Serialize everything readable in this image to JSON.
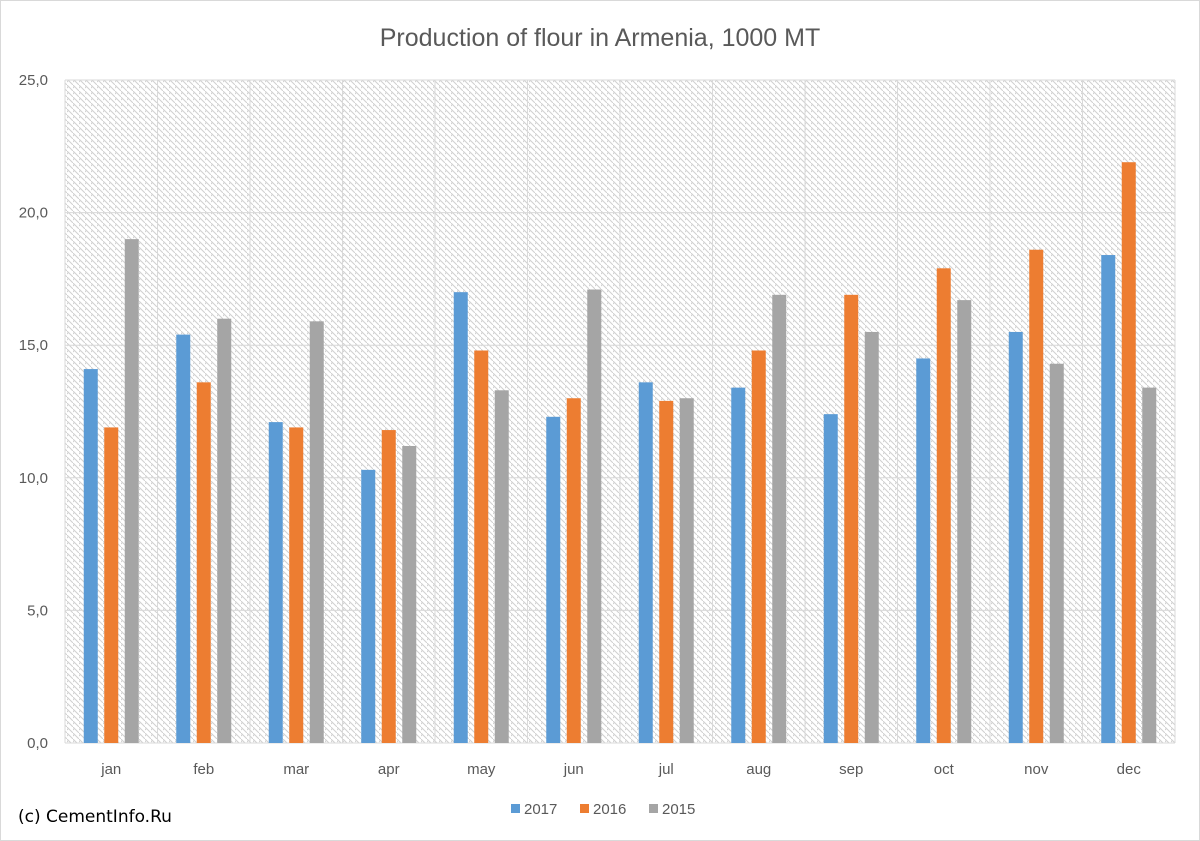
{
  "chart_data": {
    "type": "bar",
    "title": "Production of flour in Armenia, 1000 MT",
    "categories": [
      "jan",
      "feb",
      "mar",
      "apr",
      "may",
      "jun",
      "jul",
      "aug",
      "sep",
      "oct",
      "nov",
      "dec"
    ],
    "series": [
      {
        "name": "2017",
        "color": "#5b9bd5",
        "values": [
          14.1,
          15.4,
          12.1,
          10.3,
          17.0,
          12.3,
          13.6,
          13.4,
          12.4,
          14.5,
          15.5,
          18.4
        ]
      },
      {
        "name": "2016",
        "color": "#ed7d31",
        "values": [
          11.9,
          13.6,
          11.9,
          11.8,
          14.8,
          13.0,
          12.9,
          14.8,
          16.9,
          17.9,
          18.6,
          21.9
        ]
      },
      {
        "name": "2015",
        "color": "#a5a5a5",
        "values": [
          19.0,
          16.0,
          15.9,
          11.2,
          13.3,
          17.1,
          13.0,
          16.9,
          15.5,
          16.7,
          14.3,
          13.4
        ]
      }
    ],
    "ylim": [
      0,
      25
    ],
    "yticks": [
      "0,0",
      "5,0",
      "10,0",
      "15,0",
      "20,0",
      "25,0"
    ],
    "grid": true,
    "legend": "bottom"
  },
  "footer": {
    "credit": "(c) CementInfo.Ru"
  }
}
